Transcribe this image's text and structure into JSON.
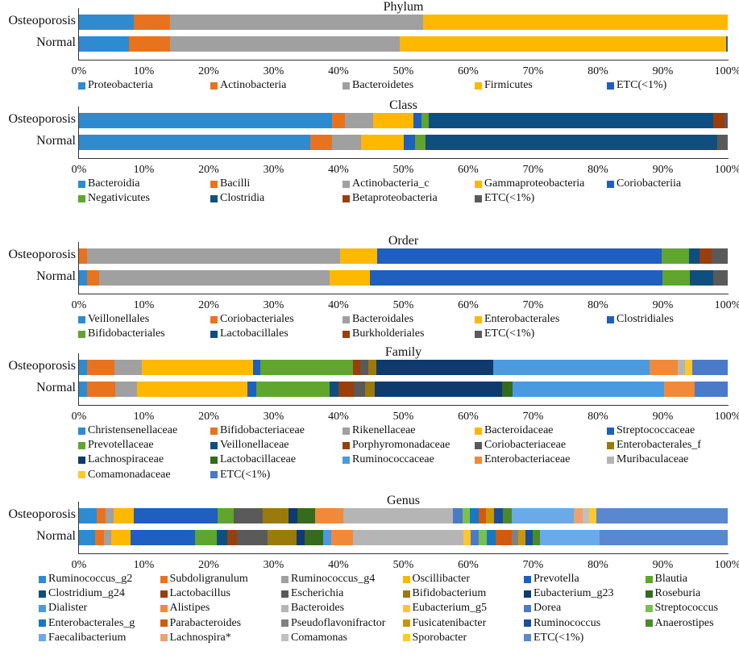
{
  "chart_data": [
    {
      "type": "bar",
      "orientation": "horizontal-stacked-100",
      "title": "Phylum",
      "categories": [
        "Osteoporosis",
        "Normal"
      ],
      "xlim": [
        0,
        100
      ],
      "xticks": [
        "0%",
        "10%",
        "20%",
        "30%",
        "40%",
        "50%",
        "60%",
        "70%",
        "80%",
        "90%",
        "100%"
      ],
      "legend_columns": 5,
      "series": [
        {
          "name": "Proteobacteria",
          "color": "#2e8bd0",
          "values": [
            8.4,
            7.7
          ]
        },
        {
          "name": "Actinobacteria",
          "color": "#e8731f",
          "values": [
            5.6,
            6.3
          ]
        },
        {
          "name": "Bacteroidetes",
          "color": "#a0a0a0",
          "values": [
            39.0,
            35.5
          ]
        },
        {
          "name": "Firmicutes",
          "color": "#ffb800",
          "values": [
            47.0,
            50.2
          ]
        },
        {
          "name": "ETC(<1%)",
          "color": "#1f5fbf",
          "values": [
            0.0,
            0.3
          ]
        }
      ]
    },
    {
      "type": "bar",
      "orientation": "horizontal-stacked-100",
      "title": "Class",
      "categories": [
        "Osteoporosis",
        "Normal"
      ],
      "xlim": [
        0,
        100
      ],
      "xticks": [
        "0%",
        "10%",
        "20%",
        "30%",
        "40%",
        "50%",
        "60%",
        "70%",
        "80%",
        "90%",
        "100%"
      ],
      "legend_columns": 5,
      "series": [
        {
          "name": "Bacteroidia",
          "color": "#2e8bd0",
          "values": [
            39.0,
            35.6
          ]
        },
        {
          "name": "Bacilli",
          "color": "#e8731f",
          "values": [
            2.0,
            3.4
          ]
        },
        {
          "name": "Actinobacteria_c",
          "color": "#a0a0a0",
          "values": [
            4.3,
            4.5
          ]
        },
        {
          "name": "Gammaproteobacteria",
          "color": "#ffb800",
          "values": [
            6.3,
            6.6
          ]
        },
        {
          "name": "Coriobacteriia",
          "color": "#1f5fbf",
          "values": [
            1.2,
            1.7
          ]
        },
        {
          "name": "Negativicutes",
          "color": "#5fa52e",
          "values": [
            1.1,
            1.6
          ]
        },
        {
          "name": "Clostridia",
          "color": "#0e4f80",
          "values": [
            43.9,
            45.0
          ]
        },
        {
          "name": "Betaproteobacteria",
          "color": "#9a3e0b",
          "values": [
            1.7,
            0.0
          ]
        },
        {
          "name": "ETC(<1%)",
          "color": "#5a5a5a",
          "values": [
            0.5,
            1.6
          ]
        }
      ]
    },
    {
      "type": "bar",
      "orientation": "horizontal-stacked-100",
      "title": "Order",
      "categories": [
        "Osteoporosis",
        "Normal"
      ],
      "xlim": [
        0,
        100
      ],
      "xticks": [
        "0%",
        "10%",
        "20%",
        "30%",
        "40%",
        "50%",
        "60%",
        "70%",
        "80%",
        "90%",
        "100%"
      ],
      "legend_columns": 5,
      "series": [
        {
          "name": "Veillonellales",
          "color": "#2e8bd0",
          "values": [
            0.0,
            1.3
          ]
        },
        {
          "name": "Coriobacteriales",
          "color": "#e8731f",
          "values": [
            1.2,
            1.8
          ]
        },
        {
          "name": "Bacteroidales",
          "color": "#a0a0a0",
          "values": [
            39.1,
            35.5
          ]
        },
        {
          "name": "Enterobacterales",
          "color": "#ffb800",
          "values": [
            5.7,
            6.2
          ]
        },
        {
          "name": "Clostridiales",
          "color": "#1f5fbf",
          "values": [
            43.8,
            45.2
          ]
        },
        {
          "name": "Bifidobacteriales",
          "color": "#5fa52e",
          "values": [
            4.2,
            4.2
          ]
        },
        {
          "name": "Lactobacillales",
          "color": "#0e4f80",
          "values": [
            1.7,
            3.6
          ]
        },
        {
          "name": "Burkholderiales",
          "color": "#9a3e0b",
          "values": [
            1.8,
            0.0
          ]
        },
        {
          "name": "ETC(<1%)",
          "color": "#5a5a5a",
          "values": [
            2.5,
            2.2
          ]
        }
      ]
    },
    {
      "type": "bar",
      "orientation": "horizontal-stacked-100",
      "title": "Family",
      "categories": [
        "Osteoporosis",
        "Normal"
      ],
      "xlim": [
        0,
        100
      ],
      "xticks": [
        "0%",
        "10%",
        "20%",
        "30%",
        "40%",
        "50%",
        "60%",
        "70%",
        "80%",
        "90%",
        "100%"
      ],
      "legend_columns": 5,
      "series": [
        {
          "name": "Christensenellaceae",
          "color": "#2e8bd0",
          "values": [
            1.3,
            1.3
          ]
        },
        {
          "name": "Bifidobacteriaceae",
          "color": "#e8731f",
          "values": [
            4.2,
            4.3
          ]
        },
        {
          "name": "Rikenellaceae",
          "color": "#a0a0a0",
          "values": [
            4.15,
            3.3
          ]
        },
        {
          "name": "Bacteroidaceae",
          "color": "#ffb800",
          "values": [
            17.15,
            17.1
          ]
        },
        {
          "name": "Streptococcaceae",
          "color": "#1f5fbf",
          "values": [
            1.1,
            1.3
          ]
        },
        {
          "name": "Prevotellaceae",
          "color": "#5fa52e",
          "values": [
            14.3,
            11.4
          ]
        },
        {
          "name": "Veillonellaceae",
          "color": "#0e4f80",
          "values": [
            0.0,
            1.3
          ]
        },
        {
          "name": "Porphyromonadaceae",
          "color": "#9a3e0b",
          "values": [
            1.2,
            2.4
          ]
        },
        {
          "name": "Coriobacteriaceae",
          "color": "#5a5a5a",
          "values": [
            1.2,
            1.7
          ]
        },
        {
          "name": "Enterobacterales_f",
          "color": "#9a7a0a",
          "values": [
            1.3,
            1.5
          ]
        },
        {
          "name": "Lachnospiraceae",
          "color": "#0e3a6e",
          "values": [
            18.0,
            19.6
          ]
        },
        {
          "name": "Lactobacillaceae",
          "color": "#356b1c",
          "values": [
            0.0,
            1.6
          ]
        },
        {
          "name": "Ruminococcaceae",
          "color": "#4a9ae0",
          "values": [
            24.0,
            23.4
          ]
        },
        {
          "name": "Enterobacteriaceae",
          "color": "#f08a3a",
          "values": [
            4.4,
            4.7
          ]
        },
        {
          "name": "Muribaculaceae",
          "color": "#b5b5b5",
          "values": [
            1.1,
            0.0
          ]
        },
        {
          "name": "Comamonadaceae",
          "color": "#ffc72a",
          "values": [
            1.2,
            0.0
          ]
        },
        {
          "name": "ETC(<1%)",
          "color": "#4a7ac8",
          "values": [
            5.4,
            5.1
          ]
        }
      ]
    },
    {
      "type": "bar",
      "orientation": "horizontal-stacked-100",
      "title": "Genus",
      "categories": [
        "Osteoporosis",
        "Normal"
      ],
      "xlim": [
        0,
        100
      ],
      "xticks": [
        "0%",
        "10%",
        "20%",
        "30%",
        "40%",
        "50%",
        "60%",
        "70%",
        "80%",
        "90%",
        "100%"
      ],
      "legend_columns": 6,
      "series": [
        {
          "name": "Ruminococcus_g2",
          "color": "#2e8bd0",
          "values": [
            2.7,
            2.5
          ]
        },
        {
          "name": "Subdoligranulum",
          "color": "#e8731f",
          "values": [
            1.4,
            1.4
          ]
        },
        {
          "name": "Ruminococcus_g4",
          "color": "#a0a0a0",
          "values": [
            1.2,
            1.1
          ]
        },
        {
          "name": "Oscillibacter",
          "color": "#ffb800",
          "values": [
            3.1,
            3.0
          ]
        },
        {
          "name": "Prevotella",
          "color": "#1f5fbf",
          "values": [
            13.0,
            9.9
          ]
        },
        {
          "name": "Blautia",
          "color": "#5fa52e",
          "values": [
            2.5,
            3.3
          ]
        },
        {
          "name": "Clostridium_g24",
          "color": "#0e4f80",
          "values": [
            0.0,
            1.7
          ]
        },
        {
          "name": "Lactobacillus",
          "color": "#9a3e0b",
          "values": [
            0.0,
            1.5
          ]
        },
        {
          "name": "Escherichia",
          "color": "#5a5a5a",
          "values": [
            4.4,
            4.7
          ]
        },
        {
          "name": "Bifidobacterium",
          "color": "#9a7a0a",
          "values": [
            4.0,
            4.4
          ]
        },
        {
          "name": "Eubacterium_g23",
          "color": "#0e3a6e",
          "values": [
            1.4,
            1.3
          ]
        },
        {
          "name": "Roseburia",
          "color": "#356b1c",
          "values": [
            2.7,
            2.9
          ]
        },
        {
          "name": "Dialister",
          "color": "#4a9ae0",
          "values": [
            0.0,
            1.2
          ]
        },
        {
          "name": "Alistipes",
          "color": "#f08a3a",
          "values": [
            4.3,
            3.3
          ]
        },
        {
          "name": "Bacteroides",
          "color": "#b5b5b5",
          "values": [
            17.0,
            17.1
          ]
        },
        {
          "name": "Eubacterium_g5",
          "color": "#ffc72a",
          "values": [
            0.0,
            1.1
          ]
        },
        {
          "name": "Dorea",
          "color": "#4a7ac8",
          "values": [
            1.4,
            1.2
          ]
        },
        {
          "name": "Streptococcus",
          "color": "#7ac050",
          "values": [
            1.2,
            1.3
          ]
        },
        {
          "name": "Enterobacterales_g",
          "color": "#1a78c0",
          "values": [
            1.3,
            1.4
          ]
        },
        {
          "name": "Parabacteroides",
          "color": "#d05a10",
          "values": [
            1.1,
            2.4
          ]
        },
        {
          "name": "Pseudoflavonifractor",
          "color": "#808080",
          "values": [
            0.0,
            1.0
          ]
        },
        {
          "name": "Fusicatenibacter",
          "color": "#c8960a",
          "values": [
            1.3,
            1.1
          ]
        },
        {
          "name": "Ruminococcus",
          "color": "#1a4e9a",
          "values": [
            1.4,
            1.1
          ]
        },
        {
          "name": "Anaerostipes",
          "color": "#4a8a2a",
          "values": [
            1.3,
            1.2
          ]
        },
        {
          "name": "Faecalibacterium",
          "color": "#6aaae8",
          "values": [
            9.6,
            9.2
          ]
        },
        {
          "name": "Lachnospira*",
          "color": "#f0a070",
          "values": [
            1.3,
            0.0
          ]
        },
        {
          "name": "Comamonas",
          "color": "#c0c0c0",
          "values": [
            1.1,
            0.0
          ]
        },
        {
          "name": "Sporobacter",
          "color": "#ffc830",
          "values": [
            1.1,
            0.0
          ]
        },
        {
          "name": "ETC(<1%)",
          "color": "#5a88d0",
          "values": [
            20.2,
            19.7
          ]
        }
      ]
    }
  ]
}
